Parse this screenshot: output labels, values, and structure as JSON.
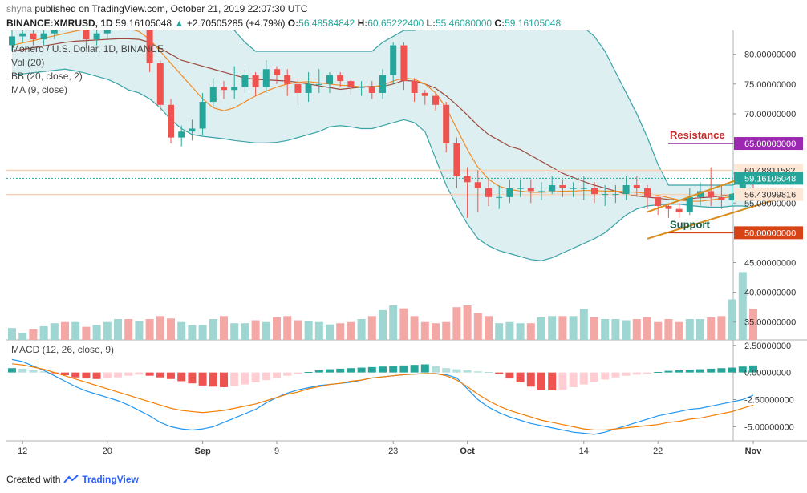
{
  "header": {
    "user": "shyna",
    "published_text": " published on TradingView.com, October 21, 2019 22:07:30 UTC",
    "symbol": "BINANCE:XMRUSD, 1D",
    "price": "59.16105048",
    "change_arrow": "▲",
    "change": "+2.70505285 (+4.79%)",
    "ohlc_o_label": "O:",
    "ohlc_o": "56.48584842",
    "ohlc_h_label": "H:",
    "ohlc_h": "60.65222400",
    "ohlc_l_label": "L:",
    "ohlc_l": "55.46080000",
    "ohlc_c_label": "C:",
    "ohlc_c": "59.16105048"
  },
  "legend": {
    "title": "Monero / U.S. Dollar, 1D, BINANCE",
    "vol": "Vol (20)",
    "bb": "BB (20, close, 2)",
    "ma": "MA (9, close)",
    "macd": "MACD (12, 26, close, 9)"
  },
  "annotations": {
    "resistance": "Resistance",
    "support": "Support"
  },
  "price_badges": {
    "high_label": "60.48811582",
    "current_label": "59.16105048",
    "open_label": "56.43099816",
    "resistance_label": "65.00000000",
    "support_label": "50.00000000"
  },
  "footer": {
    "created_with": "Created with",
    "brand": "TradingView"
  },
  "colors": {
    "up": "#26a69a",
    "down": "#ef5350",
    "bb_fill": "#cfe8ea",
    "bb_line": "#3aa3a8",
    "ma_line": "#f28b24",
    "mid_line": "#9c4a3f",
    "resistance": "#9c27b0",
    "support": "#d84315",
    "channel": "#d98c1a",
    "macd_line": "#2196f3",
    "signal_line": "#f57c00"
  },
  "chart_data": {
    "type": "candlestick",
    "title": "Monero / U.S. Dollar, 1D, BINANCE",
    "price_axis": {
      "ticks": [
        80,
        75,
        70,
        65,
        60,
        55,
        50,
        45,
        40,
        35
      ],
      "tick_labels": [
        "80.00000000",
        "75.00000000",
        "70.00000000",
        "65.00000000",
        "60.00000000",
        "55.00000000",
        "50.00000000",
        "45.00000000",
        "40.00000000",
        "35.00000000"
      ],
      "range": [
        32,
        84
      ]
    },
    "macd_axis": {
      "ticks": [
        2.5,
        0,
        -2.5,
        -5
      ],
      "tick_labels": [
        "2.50000000",
        "0.00000000",
        "-2.50000000",
        "-5.00000000"
      ],
      "range": [
        -6.3,
        3.0
      ]
    },
    "x_axis": {
      "labels": [
        "12",
        "20",
        "Sep",
        "9",
        "23",
        "Oct",
        "14",
        "22",
        "Nov"
      ],
      "label_index": [
        1,
        9,
        18,
        25,
        36,
        43,
        54,
        61,
        70
      ]
    },
    "candles": {
      "open": [
        81.5,
        83.0,
        83.5,
        82.5,
        83.5,
        85.5,
        85.0,
        87.0,
        82.5,
        83.5,
        84.5,
        87.5,
        86.0,
        86.0,
        78.5,
        71.5,
        66.0,
        67.0,
        67.5,
        72.0,
        74.5,
        74.0,
        74.5,
        76.5,
        74.5,
        77.5,
        76.5,
        75.0,
        73.5,
        75.0,
        75.0,
        76.5,
        75.5,
        74.5,
        74.5,
        73.5,
        76.5,
        81.5,
        75.5,
        73.5,
        73.0,
        71.5,
        65.0,
        59.5,
        58.5,
        57.5,
        56.0,
        56.0,
        57.5,
        57.5,
        57.0,
        57.0,
        58.0,
        57.5,
        57.5,
        57.5,
        56.5,
        56.5,
        56.5,
        58.0,
        57.5,
        56.0,
        54.5,
        54.0,
        53.5,
        56.0,
        57.0,
        56.0,
        55.5,
        56.5,
        59.2
      ],
      "close": [
        83.0,
        83.5,
        82.5,
        83.5,
        85.5,
        85.0,
        87.0,
        82.5,
        83.5,
        84.5,
        87.5,
        86.0,
        86.0,
        78.5,
        71.5,
        66.0,
        67.0,
        67.5,
        72.0,
        74.5,
        74.0,
        74.5,
        76.5,
        74.5,
        77.5,
        76.5,
        75.0,
        73.5,
        75.0,
        75.0,
        76.5,
        75.5,
        74.5,
        74.5,
        73.5,
        76.5,
        81.5,
        75.5,
        73.5,
        73.0,
        71.5,
        65.0,
        59.5,
        58.5,
        57.5,
        56.0,
        56.0,
        57.5,
        57.5,
        57.0,
        57.0,
        58.0,
        57.5,
        57.5,
        57.5,
        56.5,
        56.5,
        56.5,
        58.0,
        57.5,
        56.0,
        54.5,
        54.0,
        53.5,
        56.0,
        57.0,
        56.0,
        55.5,
        56.5,
        59.2,
        59.16
      ],
      "high": [
        84.0,
        84.5,
        84.5,
        84.5,
        86.5,
        86.5,
        88.0,
        87.5,
        84.5,
        85.5,
        88.5,
        88.0,
        87.0,
        86.5,
        79.0,
        72.5,
        68.0,
        69.0,
        73.5,
        76.0,
        75.5,
        78.0,
        77.5,
        77.0,
        79.0,
        78.0,
        77.5,
        76.0,
        77.0,
        77.5,
        77.0,
        77.0,
        76.0,
        75.5,
        75.5,
        77.5,
        82.0,
        82.0,
        76.0,
        74.0,
        73.5,
        72.0,
        66.0,
        61.0,
        60.5,
        59.0,
        58.0,
        59.0,
        59.0,
        59.0,
        58.5,
        59.5,
        59.0,
        58.5,
        59.5,
        58.5,
        58.0,
        58.0,
        59.5,
        59.5,
        58.0,
        56.0,
        55.0,
        55.0,
        57.5,
        58.5,
        61.0,
        58.0,
        60.5,
        60.8,
        60.65
      ],
      "low": [
        80.5,
        82.0,
        81.5,
        81.5,
        82.5,
        84.0,
        84.5,
        81.0,
        81.5,
        82.5,
        84.0,
        85.0,
        85.0,
        77.0,
        70.5,
        65.0,
        64.5,
        65.5,
        66.5,
        71.0,
        72.5,
        72.5,
        73.5,
        73.0,
        73.5,
        75.0,
        73.0,
        71.5,
        72.0,
        73.5,
        73.5,
        74.5,
        73.0,
        73.0,
        72.5,
        72.5,
        75.0,
        74.0,
        72.0,
        71.5,
        70.5,
        63.5,
        57.5,
        52.5,
        53.5,
        54.5,
        54.0,
        55.0,
        56.0,
        55.0,
        55.5,
        56.5,
        56.0,
        56.0,
        55.5,
        55.0,
        54.5,
        55.0,
        55.5,
        56.0,
        54.0,
        53.0,
        52.5,
        52.5,
        53.0,
        54.5,
        54.5,
        54.0,
        54.5,
        56.0,
        55.46
      ]
    },
    "volume": [
      34.0,
      33.2,
      33.8,
      34.3,
      34.8,
      35.0,
      35.0,
      34.2,
      34.5,
      35.0,
      35.5,
      35.5,
      35.2,
      35.5,
      36.0,
      35.6,
      35.0,
      34.5,
      34.5,
      35.5,
      36.0,
      34.8,
      34.8,
      35.3,
      35.0,
      35.8,
      36.0,
      35.3,
      35.2,
      35.0,
      34.6,
      34.8,
      35.0,
      35.5,
      36.0,
      37.0,
      37.8,
      37.3,
      36.0,
      35.0,
      34.8,
      35.0,
      37.5,
      37.8,
      36.5,
      36.0,
      34.8,
      35.0,
      34.8,
      34.8,
      35.8,
      36.0,
      36.0,
      36.0,
      37.2,
      35.8,
      35.5,
      35.5,
      35.3,
      35.5,
      35.8,
      35.0,
      35.5,
      35.0,
      35.5,
      35.5,
      35.8,
      36.0,
      38.8,
      43.4,
      37.2
    ],
    "bollinger": {
      "upper": [
        85.2,
        85.3,
        85.4,
        85.5,
        85.6,
        85.7,
        85.8,
        85.9,
        85.9,
        86.0,
        86.5,
        87.0,
        87.2,
        87.2,
        87.2,
        87.2,
        87.2,
        87.2,
        87.0,
        86.5,
        85.5,
        84.0,
        82.0,
        80.5,
        80.5,
        80.5,
        80.5,
        80.5,
        80.5,
        80.5,
        80.5,
        80.5,
        80.5,
        80.5,
        80.5,
        82.0,
        83.0,
        84.0,
        84.0,
        84.5,
        85.0,
        86.0,
        86.5,
        86.5,
        86.5,
        86.5,
        86.5,
        86.5,
        86.5,
        86.5,
        86.5,
        86.5,
        86.0,
        85.5,
        84.5,
        83.0,
        80.5,
        77.0,
        73.5,
        70.0,
        66.0,
        61.5,
        58.0,
        58.0,
        58.0,
        58.0,
        58.0,
        58.0,
        58.0,
        58.5,
        59.0
      ],
      "middle": [
        80.5,
        80.8,
        81.1,
        81.4,
        81.7,
        82.0,
        82.2,
        82.3,
        82.4,
        82.5,
        82.6,
        82.6,
        82.5,
        82.0,
        81.0,
        80.0,
        79.0,
        78.5,
        78.0,
        77.5,
        77.0,
        76.5,
        76.0,
        75.8,
        75.7,
        75.6,
        75.5,
        75.3,
        75.0,
        74.7,
        74.4,
        74.1,
        74.3,
        74.5,
        74.6,
        74.6,
        75.0,
        75.6,
        75.5,
        75.0,
        74.3,
        73.0,
        71.5,
        69.8,
        68.0,
        66.5,
        65.5,
        64.5,
        64.0,
        63.0,
        62.0,
        61.0,
        60.0,
        59.3,
        58.6,
        58.0,
        57.5,
        57.0,
        56.5,
        56.2,
        56.0,
        55.8,
        55.6,
        55.5,
        55.7,
        55.9,
        56.0,
        56.2,
        56.5,
        56.8,
        57.0
      ],
      "lower": [
        76.5,
        76.7,
        76.9,
        77.1,
        77.3,
        77.5,
        77.2,
        76.8,
        76.3,
        75.8,
        75.0,
        74.0,
        73.5,
        72.5,
        71.0,
        69.0,
        67.5,
        66.5,
        66.2,
        66.0,
        65.8,
        65.5,
        65.3,
        65.1,
        65.1,
        65.2,
        65.5,
        66.0,
        66.5,
        67.0,
        67.8,
        68.0,
        67.8,
        67.5,
        67.5,
        68.0,
        68.5,
        69.0,
        68.5,
        67.0,
        62.5,
        58.0,
        54.5,
        51.5,
        49.0,
        47.8,
        47.0,
        46.5,
        46.0,
        45.5,
        45.3,
        45.8,
        46.6,
        47.4,
        48.2,
        49.0,
        50.0,
        51.5,
        53.0,
        54.0,
        54.5,
        54.7,
        54.8,
        54.8,
        54.6,
        54.4,
        54.3,
        54.3,
        54.5,
        54.5,
        54.2
      ]
    },
    "moving_average_9": [
      81.5,
      81.9,
      82.3,
      82.7,
      83.1,
      83.5,
      83.9,
      84.2,
      84.4,
      84.6,
      84.6,
      84.3,
      83.8,
      82.5,
      80.5,
      78.5,
      76.5,
      74.5,
      72.5,
      71.0,
      70.5,
      71.0,
      72.0,
      73.0,
      73.8,
      74.5,
      75.0,
      75.3,
      75.4,
      75.2,
      75.0,
      74.8,
      74.7,
      74.5,
      74.5,
      74.8,
      75.5,
      76.0,
      75.8,
      75.0,
      73.5,
      71.0,
      67.5,
      64.0,
      61.0,
      59.0,
      57.8,
      57.3,
      57.0,
      56.8,
      56.8,
      56.9,
      57.0,
      57.0,
      57.1,
      57.1,
      57.0,
      57.0,
      56.9,
      56.8,
      56.6,
      56.3,
      55.9,
      55.5,
      55.3,
      55.3,
      55.5,
      55.8,
      56.1,
      56.5,
      56.7
    ],
    "macd": {
      "histogram": [
        0.4,
        0.35,
        0.25,
        0.1,
        -0.05,
        -0.25,
        -0.45,
        -0.55,
        -0.6,
        -0.55,
        -0.45,
        -0.3,
        -0.2,
        -0.3,
        -0.45,
        -0.6,
        -0.8,
        -1.0,
        -1.2,
        -1.3,
        -1.35,
        -1.25,
        -1.1,
        -0.9,
        -0.7,
        -0.5,
        -0.3,
        -0.15,
        0.05,
        0.2,
        0.3,
        0.35,
        0.4,
        0.45,
        0.5,
        0.55,
        0.6,
        0.65,
        0.7,
        0.75,
        0.6,
        0.4,
        0.3,
        0.2,
        0.1,
        0.05,
        -0.15,
        -0.55,
        -0.9,
        -1.3,
        -1.6,
        -1.65,
        -1.6,
        -1.35,
        -1.1,
        -0.85,
        -0.65,
        -0.45,
        -0.3,
        -0.2,
        -0.1,
        0.05,
        0.15,
        0.2,
        0.25,
        0.3,
        0.35,
        0.4,
        0.45,
        0.55,
        0.65
      ],
      "macd_line": [
        1.2,
        1.0,
        0.6,
        0.2,
        -0.3,
        -0.8,
        -1.3,
        -1.7,
        -2.0,
        -2.3,
        -2.6,
        -3.0,
        -3.5,
        -4.0,
        -4.6,
        -5.0,
        -5.2,
        -5.3,
        -5.2,
        -5.0,
        -4.6,
        -4.2,
        -3.8,
        -3.4,
        -2.8,
        -2.3,
        -1.9,
        -1.6,
        -1.4,
        -1.2,
        -1.1,
        -1.0,
        -0.9,
        -0.7,
        -0.5,
        -0.4,
        -0.3,
        -0.2,
        -0.15,
        -0.1,
        -0.1,
        -0.2,
        -0.5,
        -1.5,
        -2.5,
        -3.2,
        -3.7,
        -4.1,
        -4.4,
        -4.7,
        -4.9,
        -5.1,
        -5.3,
        -5.5,
        -5.6,
        -5.7,
        -5.5,
        -5.2,
        -4.9,
        -4.6,
        -4.3,
        -4.0,
        -3.8,
        -3.6,
        -3.4,
        -3.3,
        -3.1,
        -2.9,
        -2.7,
        -2.5,
        -2.1
      ],
      "signal_line": [
        0.8,
        0.7,
        0.5,
        0.3,
        0.0,
        -0.3,
        -0.6,
        -0.9,
        -1.2,
        -1.5,
        -1.8,
        -2.1,
        -2.4,
        -2.7,
        -3.0,
        -3.3,
        -3.5,
        -3.6,
        -3.7,
        -3.6,
        -3.5,
        -3.3,
        -3.1,
        -2.9,
        -2.6,
        -2.3,
        -2.0,
        -1.8,
        -1.5,
        -1.3,
        -1.1,
        -1.0,
        -0.8,
        -0.7,
        -0.5,
        -0.4,
        -0.3,
        -0.2,
        -0.15,
        -0.1,
        -0.1,
        -0.3,
        -0.7,
        -1.3,
        -2.0,
        -2.6,
        -3.1,
        -3.5,
        -3.8,
        -4.1,
        -4.4,
        -4.6,
        -4.8,
        -5.0,
        -5.2,
        -5.3,
        -5.3,
        -5.2,
        -5.1,
        -5.0,
        -4.9,
        -4.8,
        -4.6,
        -4.5,
        -4.3,
        -4.2,
        -4.0,
        -3.8,
        -3.6,
        -3.3,
        -3.0
      ]
    },
    "horizontal_lines": {
      "resistance": 65.0,
      "support": 50.0,
      "high_marker": 60.48811582,
      "current_price": 59.16105048,
      "open_marker": 56.43099816
    },
    "channel": {
      "upper": [
        [
          60,
          53.5
        ],
        [
          71,
          60.5
        ]
      ],
      "lower": [
        [
          60,
          49.0
        ],
        [
          72,
          55.5
        ]
      ]
    }
  }
}
